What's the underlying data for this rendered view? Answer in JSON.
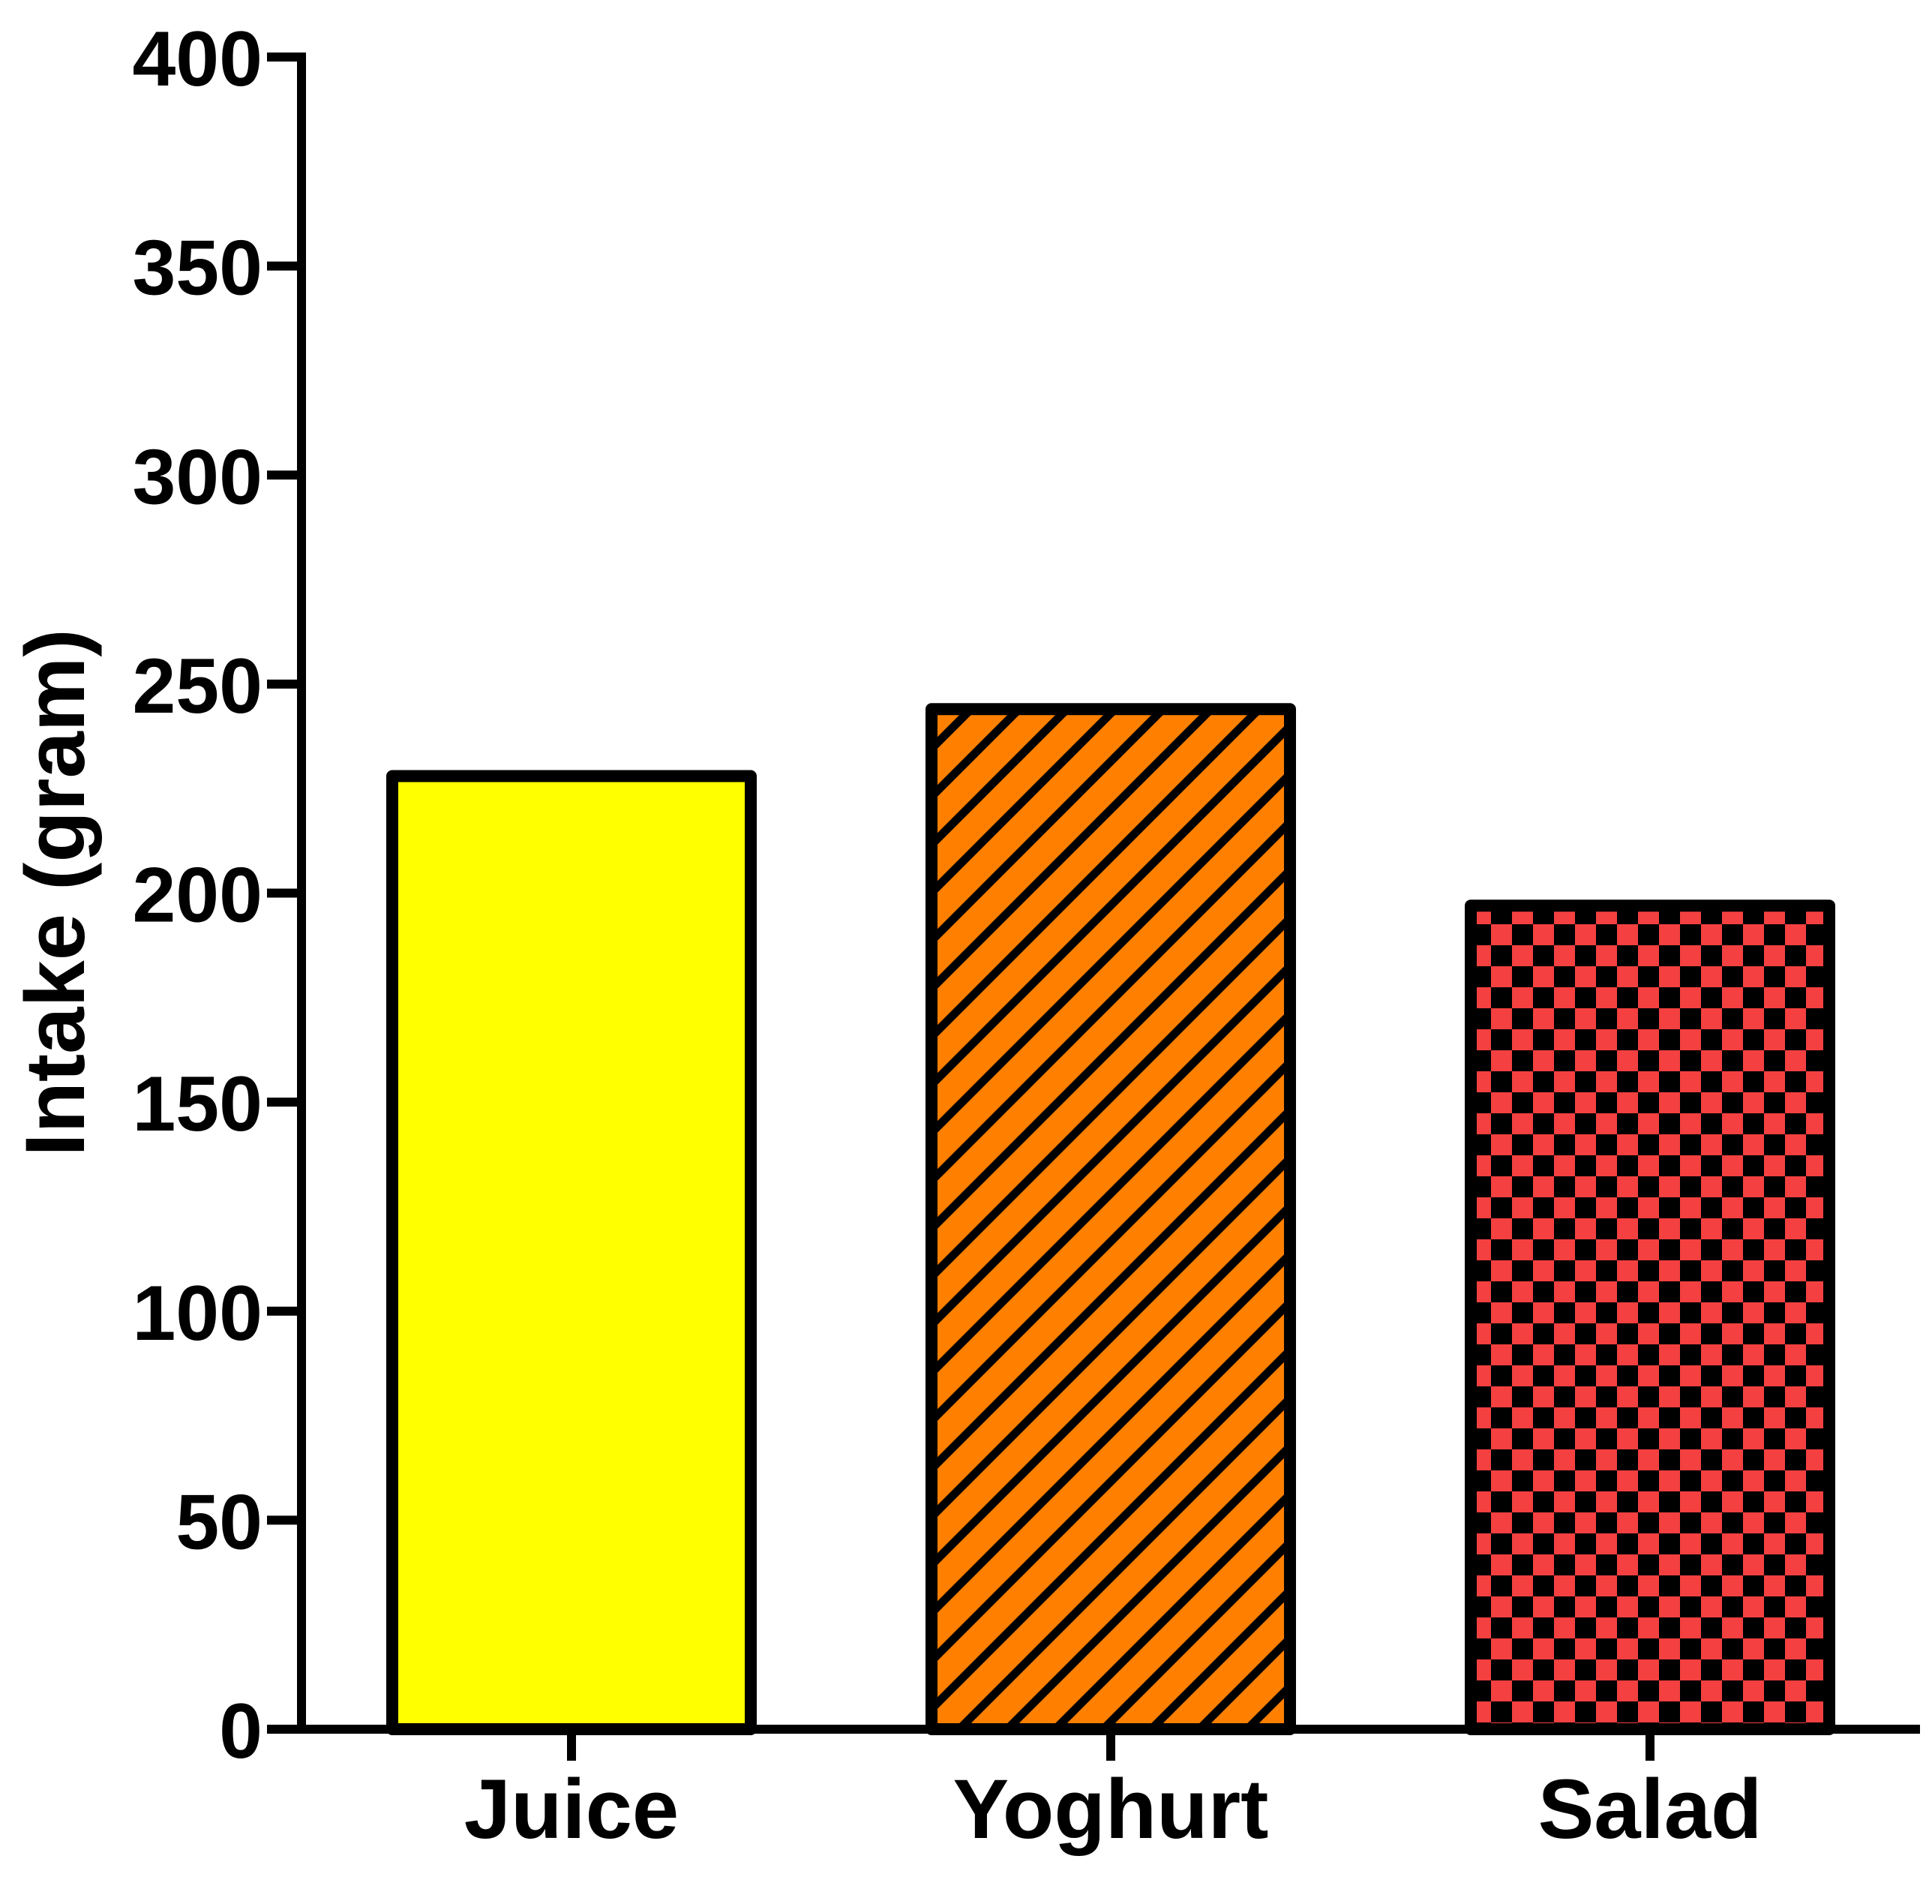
{
  "chart_data": {
    "type": "bar",
    "title": "",
    "xlabel": "",
    "ylabel": "Intake (gram)",
    "categories": [
      "Juice",
      "Yoghurt",
      "Salad"
    ],
    "values": [
      228,
      244,
      197
    ],
    "ylim": [
      0,
      400
    ],
    "yticks": [
      0,
      50,
      100,
      150,
      200,
      250,
      300,
      350,
      400
    ],
    "grid": false,
    "legend": "none",
    "bar_styles": [
      {
        "fill": "#FFFF00",
        "pattern": "solid"
      },
      {
        "fill": "#FF8000",
        "pattern": "diagonal-hatch"
      },
      {
        "fill": "#F44040",
        "pattern": "checker"
      }
    ]
  }
}
